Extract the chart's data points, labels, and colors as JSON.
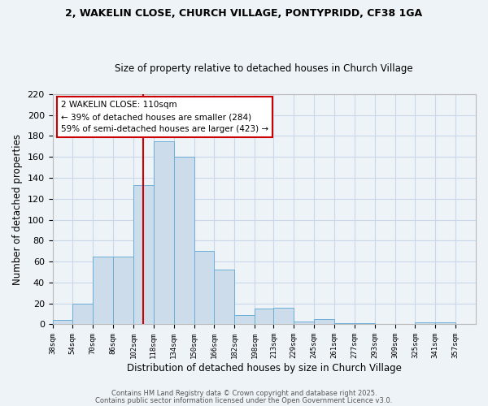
{
  "title1": "2, WAKELIN CLOSE, CHURCH VILLAGE, PONTYPRIDD, CF38 1GA",
  "title2": "Size of property relative to detached houses in Church Village",
  "xlabel": "Distribution of detached houses by size in Church Village",
  "ylabel": "Number of detached properties",
  "bar_left_edges": [
    38,
    54,
    70,
    86,
    102,
    118,
    134,
    150,
    166,
    182,
    198,
    213,
    229,
    245,
    261,
    277,
    293,
    309,
    325,
    341
  ],
  "bar_heights": [
    4,
    20,
    65,
    65,
    133,
    175,
    160,
    70,
    52,
    9,
    15,
    16,
    3,
    5,
    1,
    1,
    0,
    0,
    2,
    2
  ],
  "bin_width": 16,
  "bar_color": "#ccdcea",
  "bar_edge_color": "#6aaed6",
  "grid_color": "#c8d8e8",
  "bg_color": "#eef3f8",
  "vline_x": 110,
  "vline_color": "#cc0000",
  "annotation_title": "2 WAKELIN CLOSE: 110sqm",
  "annotation_line1": "← 39% of detached houses are smaller (284)",
  "annotation_line2": "59% of semi-detached houses are larger (423) →",
  "annotation_box_color": "#ffffff",
  "annotation_box_edge": "#cc0000",
  "ylim": [
    0,
    220
  ],
  "yticks": [
    0,
    20,
    40,
    60,
    80,
    100,
    120,
    140,
    160,
    180,
    200,
    220
  ],
  "xtick_labels": [
    "38sqm",
    "54sqm",
    "70sqm",
    "86sqm",
    "102sqm",
    "118sqm",
    "134sqm",
    "150sqm",
    "166sqm",
    "182sqm",
    "198sqm",
    "213sqm",
    "229sqm",
    "245sqm",
    "261sqm",
    "277sqm",
    "293sqm",
    "309sqm",
    "325sqm",
    "341sqm",
    "357sqm"
  ],
  "footer1": "Contains HM Land Registry data © Crown copyright and database right 2025.",
  "footer2": "Contains public sector information licensed under the Open Government Licence v3.0.",
  "last_edge": 357,
  "xlim_left": 38,
  "xlim_right": 373
}
